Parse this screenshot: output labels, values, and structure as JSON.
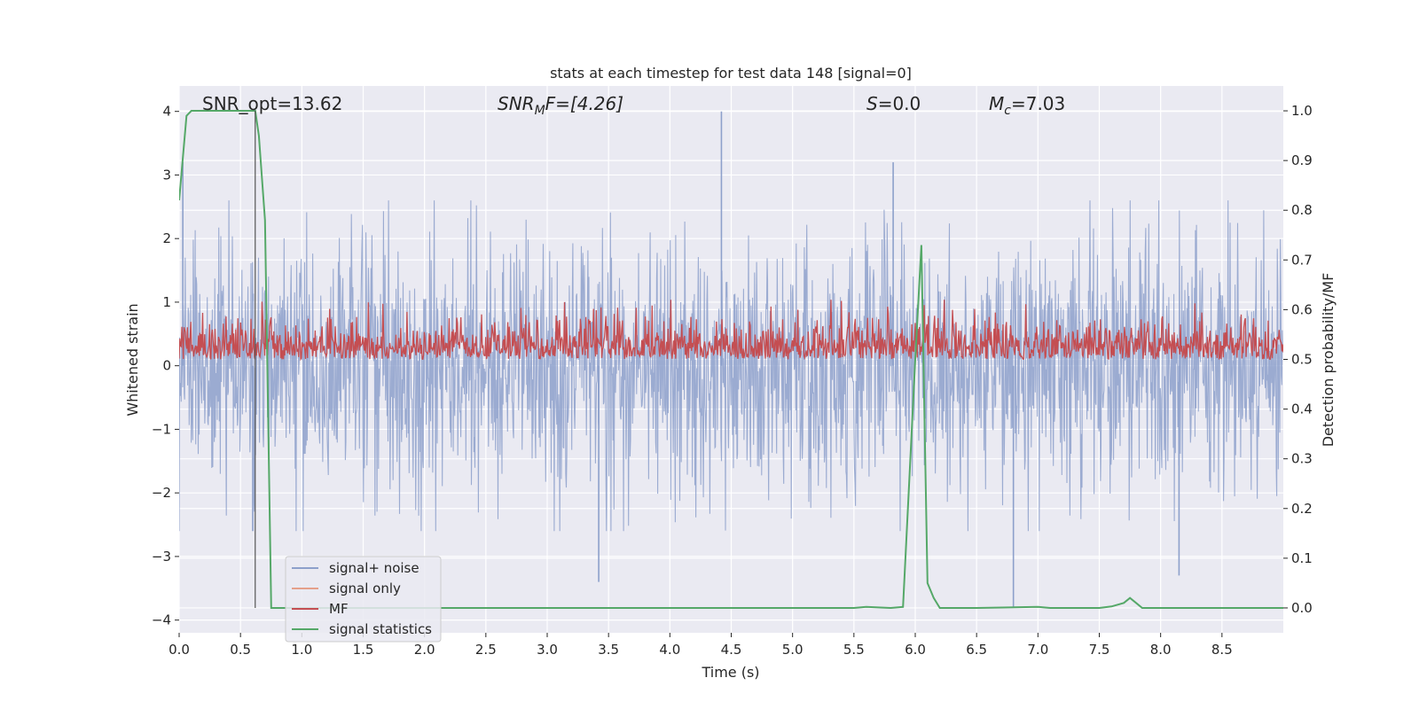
{
  "chart_data": {
    "type": "line",
    "title": "stats at each timestep for test data 148 [signal=0]",
    "xlabel": "Time (s)",
    "ylabel_left": "Whitened strain",
    "ylabel_right": "Detection probability/MF",
    "xlim": [
      0.0,
      9.0
    ],
    "ylim_left": [
      -4.2,
      4.4
    ],
    "ylim_right": [
      -0.05,
      1.05
    ],
    "x_ticks": [
      "0.0",
      "0.5",
      "1.0",
      "1.5",
      "2.0",
      "2.5",
      "3.0",
      "3.5",
      "4.0",
      "4.5",
      "5.0",
      "5.5",
      "6.0",
      "6.5",
      "7.0",
      "7.5",
      "8.0",
      "8.5"
    ],
    "x_tick_values": [
      0.0,
      0.5,
      1.0,
      1.5,
      2.0,
      2.5,
      3.0,
      3.5,
      4.0,
      4.5,
      5.0,
      5.5,
      6.0,
      6.5,
      7.0,
      7.5,
      8.0,
      8.5
    ],
    "y_ticks_left": [
      "−4",
      "−3",
      "−2",
      "−1",
      "0",
      "1",
      "2",
      "3",
      "4"
    ],
    "y_tick_values_left": [
      -4,
      -3,
      -2,
      -1,
      0,
      1,
      2,
      3,
      4
    ],
    "y_ticks_right": [
      "0.0",
      "0.1",
      "0.2",
      "0.3",
      "0.4",
      "0.5",
      "0.6",
      "0.7",
      "0.8",
      "0.9",
      "1.0"
    ],
    "y_tick_values_right": [
      0.0,
      0.1,
      0.2,
      0.3,
      0.4,
      0.5,
      0.6,
      0.7,
      0.8,
      0.9,
      1.0
    ],
    "grid": true,
    "legend_position": "lower-left",
    "annotations": {
      "snr_opt": "SNR_opt=13.62",
      "snr_mf_base": "SNR",
      "snr_mf_sub": "M",
      "snr_mf_rest": "F=[4.26]",
      "s_sym": "S",
      "s_rest": "=0.0",
      "mc_base": "M",
      "mc_sub": "c",
      "mc_rest": "=7.03"
    },
    "vertical_marker_x": 0.62,
    "series": [
      {
        "name": "signal+ noise",
        "axis": "left",
        "color": "#8da0cb",
        "envelope": {
          "typical_range": [
            -1.6,
            1.6
          ],
          "peaks": [
            [
              0.03,
              3.2
            ],
            [
              0.6,
              -2.6
            ],
            [
              3.42,
              -3.4
            ],
            [
              4.42,
              4.0
            ],
            [
              5.82,
              3.2
            ],
            [
              6.8,
              -3.8
            ],
            [
              8.15,
              -3.3
            ]
          ]
        }
      },
      {
        "name": "signal only",
        "axis": "left",
        "color": "#e5a08a",
        "values_note": ""
      },
      {
        "name": "MF",
        "axis": "right",
        "color": "#c44e52",
        "envelope": {
          "typical_range": [
            0.5,
            0.6
          ],
          "max": 0.62
        }
      },
      {
        "name": "signal statistics",
        "axis": "right",
        "color": "#55a868",
        "x": [
          0.0,
          0.06,
          0.1,
          0.2,
          0.3,
          0.4,
          0.5,
          0.55,
          0.6,
          0.62,
          0.65,
          0.7,
          0.75,
          0.8,
          1.0,
          2.0,
          3.0,
          4.0,
          5.0,
          5.5,
          5.6,
          5.7,
          5.8,
          5.9,
          5.95,
          6.0,
          6.05,
          6.1,
          6.15,
          6.2,
          6.25,
          6.5,
          7.0,
          7.1,
          7.5,
          7.6,
          7.7,
          7.75,
          7.8,
          7.85,
          7.9,
          8.0,
          9.0
        ],
        "y": [
          0.82,
          0.99,
          1.0,
          1.0,
          1.0,
          1.0,
          1.0,
          1.0,
          1.0,
          1.0,
          0.95,
          0.78,
          0.0,
          0.0,
          0.0,
          0.0,
          0.0,
          0.0,
          0.0,
          0.0,
          0.002,
          0.001,
          0.0,
          0.002,
          0.25,
          0.5,
          0.73,
          0.05,
          0.02,
          0.0,
          0.0,
          0.0,
          0.002,
          0.0,
          0.0,
          0.003,
          0.01,
          0.02,
          0.01,
          0.0,
          0.0,
          0.0,
          0.0
        ]
      }
    ]
  }
}
